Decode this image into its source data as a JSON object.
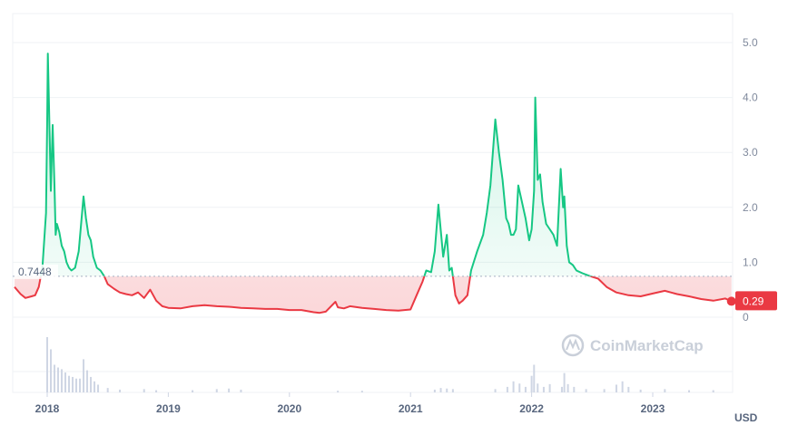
{
  "watermark": "CoinMarketCap",
  "chart_data": {
    "type": "line",
    "title": "",
    "xlabel": "",
    "ylabel": "",
    "unit_label": "USD",
    "y_ticks": [
      "0",
      "1.0",
      "2.0",
      "3.0",
      "4.0",
      "5.0"
    ],
    "ylim": [
      0,
      5.4
    ],
    "x_ticks": [
      "2018",
      "2019",
      "2020",
      "2021",
      "2022",
      "2023"
    ],
    "x_tick_years": [
      2018,
      2019,
      2020,
      2021,
      2022,
      2023
    ],
    "reference_value": 0.7448,
    "reference_label": "0.7448",
    "current_value": 0.29,
    "current_label": "0.29",
    "colors": {
      "above": "#16c784",
      "below": "#ea3943",
      "grid": "#eff2f5",
      "reference": "#a6b0c3",
      "volume": "#cfd6e4"
    },
    "series": [
      {
        "x": [
          2017.73,
          2017.78,
          2017.82,
          2017.87,
          2017.9,
          2017.93,
          2017.96,
          2017.99,
          2018.0,
          2018.005,
          2018.02,
          2018.03,
          2018.045,
          2018.06,
          2018.07,
          2018.08,
          2018.1,
          2018.12,
          2018.14,
          2018.16,
          2018.18,
          2018.2,
          2018.23,
          2018.26,
          2018.3,
          2018.32,
          2018.34,
          2018.36,
          2018.38,
          2018.41,
          2018.44,
          2018.47,
          2018.5,
          2018.55,
          2018.6,
          2018.65,
          2018.7,
          2018.75,
          2018.8,
          2018.85,
          2018.9,
          2018.95,
          2019.0,
          2019.1,
          2019.2,
          2019.3,
          2019.4,
          2019.5,
          2019.6,
          2019.7,
          2019.8,
          2019.9,
          2020.0,
          2020.1,
          2020.2,
          2020.25,
          2020.3,
          2020.38,
          2020.4,
          2020.45,
          2020.5,
          2020.6,
          2020.7,
          2020.8,
          2020.9,
          2021.0,
          2021.05,
          2021.1,
          2021.13,
          2021.17,
          2021.2,
          2021.23,
          2021.27,
          2021.3,
          2021.32,
          2021.34,
          2021.37,
          2021.4,
          2021.43,
          2021.47,
          2021.5,
          2021.55,
          2021.6,
          2021.63,
          2021.66,
          2021.7,
          2021.73,
          2021.76,
          2021.79,
          2021.81,
          2021.83,
          2021.85,
          2021.87,
          2021.89,
          2021.92,
          2021.95,
          2021.98,
          2022.0,
          2022.02,
          2022.03,
          2022.05,
          2022.07,
          2022.09,
          2022.12,
          2022.15,
          2022.18,
          2022.21,
          2022.24,
          2022.26,
          2022.27,
          2022.29,
          2022.31,
          2022.34,
          2022.37,
          2022.42,
          2022.48,
          2022.55,
          2022.62,
          2022.7,
          2022.8,
          2022.9,
          2023.0,
          2023.1,
          2023.15,
          2023.2,
          2023.3,
          2023.4,
          2023.5,
          2023.6,
          2023.65
        ],
        "y": [
          0.55,
          0.42,
          0.35,
          0.38,
          0.4,
          0.55,
          0.9,
          1.9,
          3.6,
          4.8,
          3.3,
          2.3,
          3.5,
          2.4,
          1.5,
          1.7,
          1.55,
          1.3,
          1.2,
          1.0,
          0.9,
          0.85,
          0.9,
          1.2,
          2.2,
          1.8,
          1.5,
          1.4,
          1.1,
          0.9,
          0.85,
          0.75,
          0.6,
          0.52,
          0.45,
          0.42,
          0.4,
          0.45,
          0.35,
          0.5,
          0.3,
          0.2,
          0.17,
          0.16,
          0.2,
          0.22,
          0.2,
          0.19,
          0.17,
          0.16,
          0.15,
          0.15,
          0.13,
          0.13,
          0.09,
          0.08,
          0.1,
          0.28,
          0.18,
          0.16,
          0.2,
          0.17,
          0.15,
          0.13,
          0.12,
          0.14,
          0.4,
          0.65,
          0.85,
          0.82,
          1.2,
          2.05,
          1.1,
          1.5,
          0.85,
          0.9,
          0.4,
          0.25,
          0.3,
          0.4,
          0.85,
          1.2,
          1.5,
          1.9,
          2.4,
          3.6,
          3.0,
          2.5,
          1.8,
          1.7,
          1.5,
          1.5,
          1.6,
          2.4,
          2.1,
          1.8,
          1.4,
          1.6,
          2.3,
          4.0,
          2.5,
          2.6,
          2.1,
          1.7,
          1.6,
          1.5,
          1.3,
          2.7,
          2.0,
          2.2,
          1.3,
          1.0,
          0.95,
          0.85,
          0.8,
          0.75,
          0.7,
          0.55,
          0.45,
          0.4,
          0.38,
          0.43,
          0.48,
          0.45,
          0.42,
          0.38,
          0.33,
          0.3,
          0.34,
          0.29
        ]
      }
    ],
    "volume": {
      "x": [
        2018.0,
        2018.03,
        2018.06,
        2018.09,
        2018.12,
        2018.15,
        2018.18,
        2018.21,
        2018.24,
        2018.27,
        2018.3,
        2018.33,
        2018.36,
        2018.39,
        2018.42,
        2018.5,
        2018.6,
        2018.8,
        2018.9,
        2019.2,
        2019.4,
        2019.5,
        2019.6,
        2020.4,
        2020.6,
        2021.2,
        2021.25,
        2021.3,
        2021.35,
        2021.7,
        2021.8,
        2021.85,
        2021.9,
        2021.95,
        2022.0,
        2022.02,
        2022.05,
        2022.1,
        2022.15,
        2022.25,
        2022.27,
        2022.3,
        2022.35,
        2022.45,
        2022.6,
        2022.7,
        2022.75,
        2022.8,
        2022.9,
        2023.1,
        2023.3,
        2023.5
      ],
      "values": [
        1.0,
        0.78,
        0.5,
        0.45,
        0.42,
        0.36,
        0.3,
        0.28,
        0.25,
        0.25,
        0.6,
        0.4,
        0.28,
        0.2,
        0.14,
        0.08,
        0.05,
        0.06,
        0.04,
        0.04,
        0.06,
        0.07,
        0.05,
        0.03,
        0.03,
        0.05,
        0.08,
        0.07,
        0.06,
        0.06,
        0.1,
        0.2,
        0.16,
        0.1,
        0.3,
        0.5,
        0.16,
        0.1,
        0.15,
        0.1,
        0.35,
        0.15,
        0.1,
        0.06,
        0.06,
        0.14,
        0.2,
        0.1,
        0.05,
        0.06,
        0.04,
        0.04
      ]
    }
  }
}
